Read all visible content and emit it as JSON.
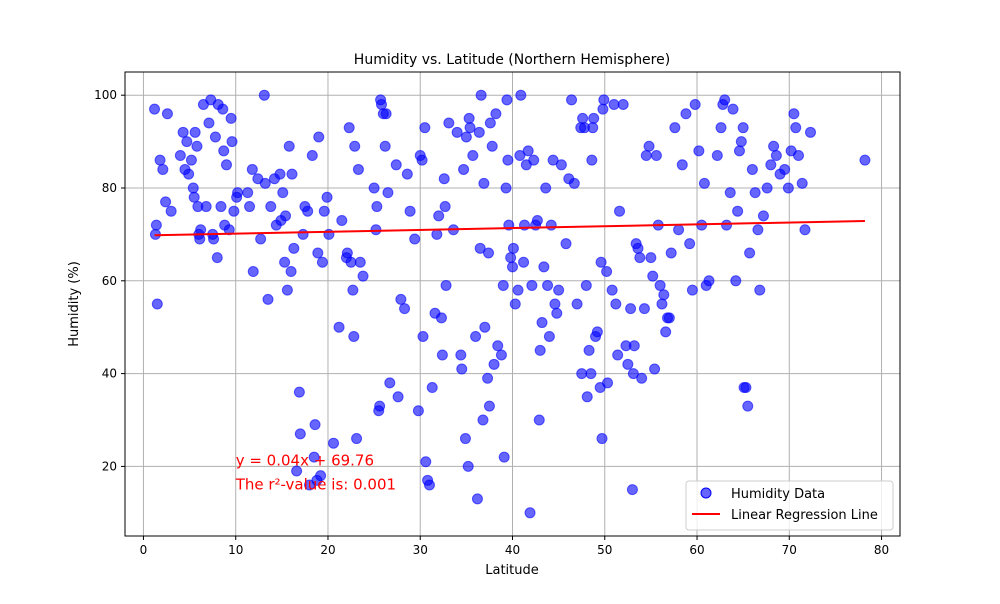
{
  "colors": {
    "points": "#0000ff",
    "regression": "#ff0000",
    "grid": "#b0b0b0",
    "axes": "#000000",
    "annotation": "#ff0000"
  },
  "chart_data": {
    "type": "scatter",
    "title": "Humidity vs. Latitude (Northern Hemisphere)",
    "xlabel": "Latitude",
    "ylabel": "Humidity (%)",
    "xlim": [
      -2,
      82
    ],
    "ylim": [
      5,
      105
    ],
    "xticks": [
      0,
      10,
      20,
      30,
      40,
      50,
      60,
      70,
      80
    ],
    "yticks": [
      20,
      40,
      60,
      80,
      100
    ],
    "grid": true,
    "legend": {
      "position": "bottom-right",
      "entries": [
        "Humidity Data",
        "Linear Regression Line"
      ]
    },
    "regression": {
      "slope": 0.04,
      "intercept": 69.76,
      "x_range": [
        1.2,
        78.2
      ],
      "equation_text": "y = 0.04x + 69.76",
      "r2_text": "The r²-value is: 0.001",
      "annotation_at": [
        10,
        15
      ]
    },
    "series": [
      {
        "name": "Humidity Data",
        "points": [
          [
            1.2,
            97
          ],
          [
            1.3,
            70
          ],
          [
            1.4,
            72
          ],
          [
            1.5,
            55
          ],
          [
            1.8,
            86
          ],
          [
            2.1,
            84
          ],
          [
            2.4,
            77
          ],
          [
            2.6,
            96
          ],
          [
            3.0,
            75
          ],
          [
            4.0,
            87
          ],
          [
            4.3,
            92
          ],
          [
            4.5,
            84
          ],
          [
            4.7,
            90
          ],
          [
            4.9,
            83
          ],
          [
            5.2,
            86
          ],
          [
            5.4,
            80
          ],
          [
            5.5,
            78
          ],
          [
            5.6,
            92
          ],
          [
            5.8,
            89
          ],
          [
            5.9,
            76
          ],
          [
            6.0,
            70
          ],
          [
            6.1,
            69
          ],
          [
            6.2,
            71
          ],
          [
            6.5,
            98
          ],
          [
            6.8,
            76
          ],
          [
            7.1,
            94
          ],
          [
            7.3,
            99
          ],
          [
            7.5,
            70
          ],
          [
            7.6,
            69
          ],
          [
            7.8,
            91
          ],
          [
            8.0,
            65
          ],
          [
            8.1,
            98
          ],
          [
            8.4,
            76
          ],
          [
            8.6,
            97
          ],
          [
            8.7,
            88
          ],
          [
            8.8,
            72
          ],
          [
            9.0,
            85
          ],
          [
            9.3,
            71
          ],
          [
            9.5,
            95
          ],
          [
            9.6,
            90
          ],
          [
            9.8,
            75
          ],
          [
            10.1,
            78
          ],
          [
            10.2,
            79
          ],
          [
            11.3,
            79
          ],
          [
            11.5,
            76
          ],
          [
            11.8,
            84
          ],
          [
            11.9,
            62
          ],
          [
            12.4,
            82
          ],
          [
            12.7,
            69
          ],
          [
            13.1,
            100
          ],
          [
            13.2,
            81
          ],
          [
            13.5,
            56
          ],
          [
            13.8,
            76
          ],
          [
            14.2,
            82
          ],
          [
            14.4,
            72
          ],
          [
            14.8,
            83
          ],
          [
            14.9,
            73
          ],
          [
            15.1,
            79
          ],
          [
            15.3,
            64
          ],
          [
            15.4,
            74
          ],
          [
            15.6,
            58
          ],
          [
            15.8,
            89
          ],
          [
            16.0,
            62
          ],
          [
            16.1,
            83
          ],
          [
            16.3,
            67
          ],
          [
            16.6,
            19
          ],
          [
            16.9,
            36
          ],
          [
            17.0,
            27
          ],
          [
            17.3,
            70
          ],
          [
            17.5,
            76
          ],
          [
            17.8,
            75
          ],
          [
            18.0,
            16
          ],
          [
            18.3,
            87
          ],
          [
            18.5,
            22
          ],
          [
            18.6,
            29
          ],
          [
            18.8,
            17
          ],
          [
            18.9,
            66
          ],
          [
            19.0,
            91
          ],
          [
            19.2,
            18
          ],
          [
            19.4,
            64
          ],
          [
            19.6,
            75
          ],
          [
            19.9,
            78
          ],
          [
            20.1,
            70
          ],
          [
            20.6,
            25
          ],
          [
            21.2,
            50
          ],
          [
            21.5,
            73
          ],
          [
            22.0,
            65
          ],
          [
            22.1,
            66
          ],
          [
            22.3,
            93
          ],
          [
            22.5,
            64
          ],
          [
            22.7,
            58
          ],
          [
            22.8,
            48
          ],
          [
            22.9,
            89
          ],
          [
            23.1,
            26
          ],
          [
            23.3,
            84
          ],
          [
            23.5,
            64
          ],
          [
            23.8,
            61
          ],
          [
            25.0,
            80
          ],
          [
            25.2,
            71
          ],
          [
            25.3,
            76
          ],
          [
            25.5,
            32
          ],
          [
            25.6,
            33
          ],
          [
            25.7,
            99
          ],
          [
            25.8,
            98
          ],
          [
            26.0,
            96
          ],
          [
            26.2,
            89
          ],
          [
            26.3,
            96
          ],
          [
            26.5,
            79
          ],
          [
            26.7,
            38
          ],
          [
            27.4,
            85
          ],
          [
            27.6,
            35
          ],
          [
            27.9,
            56
          ],
          [
            28.3,
            54
          ],
          [
            28.6,
            83
          ],
          [
            28.9,
            75
          ],
          [
            29.4,
            69
          ],
          [
            29.8,
            32
          ],
          [
            30.0,
            87
          ],
          [
            30.2,
            86
          ],
          [
            30.3,
            48
          ],
          [
            30.5,
            93
          ],
          [
            30.6,
            21
          ],
          [
            30.8,
            17
          ],
          [
            31.0,
            16
          ],
          [
            31.3,
            37
          ],
          [
            31.6,
            53
          ],
          [
            31.8,
            70
          ],
          [
            32.0,
            74
          ],
          [
            32.3,
            52
          ],
          [
            32.4,
            44
          ],
          [
            32.6,
            82
          ],
          [
            32.7,
            76
          ],
          [
            32.8,
            59
          ],
          [
            33.1,
            94
          ],
          [
            33.6,
            71
          ],
          [
            34.0,
            92
          ],
          [
            34.4,
            44
          ],
          [
            34.5,
            41
          ],
          [
            34.7,
            84
          ],
          [
            34.9,
            26
          ],
          [
            35.0,
            91
          ],
          [
            35.2,
            20
          ],
          [
            35.3,
            95
          ],
          [
            35.4,
            93
          ],
          [
            35.7,
            87
          ],
          [
            36.0,
            48
          ],
          [
            36.2,
            13
          ],
          [
            36.4,
            92
          ],
          [
            36.5,
            67
          ],
          [
            36.6,
            100
          ],
          [
            36.8,
            30
          ],
          [
            36.9,
            81
          ],
          [
            37.0,
            50
          ],
          [
            37.3,
            39
          ],
          [
            37.4,
            66
          ],
          [
            37.5,
            33
          ],
          [
            37.6,
            94
          ],
          [
            37.8,
            89
          ],
          [
            38.0,
            42
          ],
          [
            38.2,
            96
          ],
          [
            38.4,
            46
          ],
          [
            38.8,
            44
          ],
          [
            39.0,
            59
          ],
          [
            39.1,
            22
          ],
          [
            39.3,
            80
          ],
          [
            39.4,
            99
          ],
          [
            39.5,
            86
          ],
          [
            39.6,
            72
          ],
          [
            39.8,
            65
          ],
          [
            40.0,
            63
          ],
          [
            40.1,
            67
          ],
          [
            40.3,
            55
          ],
          [
            40.6,
            58
          ],
          [
            40.8,
            87
          ],
          [
            40.9,
            100
          ],
          [
            41.2,
            64
          ],
          [
            41.3,
            72
          ],
          [
            41.5,
            85
          ],
          [
            41.7,
            88
          ],
          [
            41.9,
            10
          ],
          [
            42.1,
            59
          ],
          [
            42.3,
            86
          ],
          [
            42.5,
            72
          ],
          [
            42.7,
            73
          ],
          [
            42.9,
            30
          ],
          [
            43.0,
            45
          ],
          [
            43.2,
            51
          ],
          [
            43.4,
            63
          ],
          [
            43.6,
            80
          ],
          [
            43.8,
            59
          ],
          [
            44.0,
            48
          ],
          [
            44.2,
            72
          ],
          [
            44.4,
            86
          ],
          [
            44.6,
            55
          ],
          [
            44.8,
            53
          ],
          [
            45.0,
            58
          ],
          [
            45.3,
            85
          ],
          [
            45.8,
            68
          ],
          [
            46.1,
            82
          ],
          [
            46.4,
            99
          ],
          [
            46.7,
            81
          ],
          [
            47.0,
            55
          ],
          [
            47.4,
            93
          ],
          [
            47.5,
            40
          ],
          [
            47.6,
            95
          ],
          [
            47.8,
            93
          ],
          [
            48.0,
            59
          ],
          [
            48.1,
            35
          ],
          [
            48.3,
            45
          ],
          [
            48.5,
            40
          ],
          [
            48.6,
            86
          ],
          [
            48.7,
            93
          ],
          [
            48.8,
            95
          ],
          [
            49.0,
            48
          ],
          [
            49.2,
            49
          ],
          [
            49.5,
            37
          ],
          [
            49.6,
            64
          ],
          [
            49.7,
            26
          ],
          [
            49.8,
            97
          ],
          [
            49.9,
            99
          ],
          [
            50.2,
            62
          ],
          [
            50.3,
            38
          ],
          [
            50.8,
            58
          ],
          [
            51.0,
            98
          ],
          [
            51.2,
            55
          ],
          [
            51.4,
            44
          ],
          [
            51.6,
            75
          ],
          [
            52.0,
            98
          ],
          [
            52.3,
            46
          ],
          [
            52.5,
            42
          ],
          [
            52.8,
            54
          ],
          [
            53.0,
            15
          ],
          [
            53.1,
            40
          ],
          [
            53.2,
            46
          ],
          [
            53.4,
            68
          ],
          [
            53.6,
            67
          ],
          [
            53.8,
            65
          ],
          [
            54.0,
            39
          ],
          [
            54.3,
            54
          ],
          [
            54.5,
            87
          ],
          [
            54.8,
            89
          ],
          [
            55.0,
            65
          ],
          [
            55.2,
            61
          ],
          [
            55.4,
            41
          ],
          [
            55.6,
            87
          ],
          [
            55.8,
            72
          ],
          [
            56.0,
            59
          ],
          [
            56.2,
            55
          ],
          [
            56.4,
            57
          ],
          [
            56.6,
            49
          ],
          [
            56.8,
            52
          ],
          [
            57.0,
            52
          ],
          [
            57.2,
            66
          ],
          [
            57.6,
            93
          ],
          [
            58.0,
            71
          ],
          [
            58.4,
            85
          ],
          [
            58.8,
            96
          ],
          [
            59.2,
            68
          ],
          [
            59.5,
            58
          ],
          [
            59.8,
            98
          ],
          [
            60.2,
            88
          ],
          [
            60.5,
            72
          ],
          [
            60.8,
            81
          ],
          [
            61.0,
            59
          ],
          [
            61.3,
            60
          ],
          [
            62.2,
            87
          ],
          [
            62.6,
            93
          ],
          [
            62.8,
            98
          ],
          [
            63.0,
            99
          ],
          [
            63.2,
            72
          ],
          [
            63.6,
            79
          ],
          [
            63.9,
            97
          ],
          [
            64.2,
            60
          ],
          [
            64.4,
            75
          ],
          [
            64.6,
            88
          ],
          [
            64.8,
            90
          ],
          [
            65.0,
            93
          ],
          [
            65.1,
            37
          ],
          [
            65.3,
            37
          ],
          [
            65.5,
            33
          ],
          [
            65.7,
            66
          ],
          [
            66.0,
            84
          ],
          [
            66.3,
            79
          ],
          [
            66.6,
            71
          ],
          [
            66.8,
            58
          ],
          [
            67.2,
            74
          ],
          [
            67.6,
            80
          ],
          [
            68.0,
            85
          ],
          [
            68.3,
            89
          ],
          [
            68.6,
            87
          ],
          [
            69.0,
            83
          ],
          [
            69.5,
            84
          ],
          [
            69.9,
            80
          ],
          [
            70.2,
            88
          ],
          [
            70.5,
            96
          ],
          [
            70.7,
            93
          ],
          [
            71.0,
            87
          ],
          [
            71.4,
            81
          ],
          [
            71.7,
            71
          ],
          [
            72.3,
            92
          ],
          [
            78.2,
            86
          ]
        ]
      }
    ]
  }
}
